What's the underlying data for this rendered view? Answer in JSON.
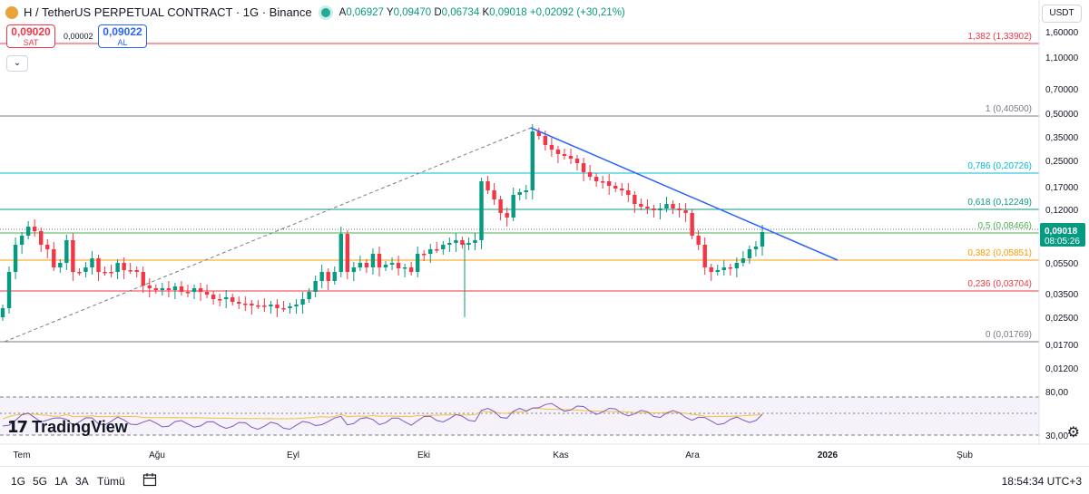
{
  "header": {
    "title": "H / TetherUS PERPETUAL CONTRACT · 1G · Binance",
    "ohlc": {
      "o_label": "A",
      "o": "0,06927",
      "h_label": "Y",
      "h": "0,09470",
      "l_label": "D",
      "l": "0,06734",
      "c_label": "K",
      "c": "0,09018",
      "change": "+0,02092 (+30,21%)"
    }
  },
  "quote": {
    "sell_price": "0,09020",
    "sell_label": "SAT",
    "spread": "0,00002",
    "buy_price": "0,09022",
    "buy_label": "AL"
  },
  "currency": "USDT",
  "price_axis": [
    "1,60000",
    "1,10000",
    "0,70000",
    "0,50000",
    "0,35000",
    "0,25000",
    "0,17000",
    "0,12000",
    "0,08000",
    "0,05500",
    "0,03500",
    "0,02500",
    "0,01700",
    "0,01200"
  ],
  "last_price": {
    "value": "0,09018",
    "countdown": "08:05:26"
  },
  "fib_levels": [
    {
      "label": "1,382 (1,33902)",
      "color": "#f23645"
    },
    {
      "label": "1 (0,40500)",
      "color": "#787b86"
    },
    {
      "label": "0,786 (0,20726)",
      "color": "#00bcd4"
    },
    {
      "label": "0,618 (0,12249)",
      "color": "#089981"
    },
    {
      "label": "0,5 (0,08466)",
      "color": "#4caf50"
    },
    {
      "label": "0,382 (0,05851)",
      "color": "#ff9800"
    },
    {
      "label": "0,236 (0,03704)",
      "color": "#f23645"
    },
    {
      "label": "0 (0,01769)",
      "color": "#787b86"
    }
  ],
  "rsi_axis": [
    "80,00",
    "30,00"
  ],
  "time_axis": [
    "Tem",
    "Ağu",
    "Eyl",
    "Eki",
    "Kas",
    "Ara",
    "2026",
    "Şub"
  ],
  "logo_text": "TradingView",
  "ranges": [
    "1G",
    "5G",
    "1A",
    "3A",
    "Tümü"
  ],
  "clock": "18:54:34 UTC+3",
  "colors": {
    "up": "#089981",
    "down": "#f23645",
    "trend": "#2962ff",
    "rsi": "#7e57c2",
    "rsi_ma": "#f5c13a"
  },
  "chart_data": {
    "type": "candlestick",
    "indicator": "RSI",
    "price_scale": "log",
    "current_price": 0.09018
  }
}
